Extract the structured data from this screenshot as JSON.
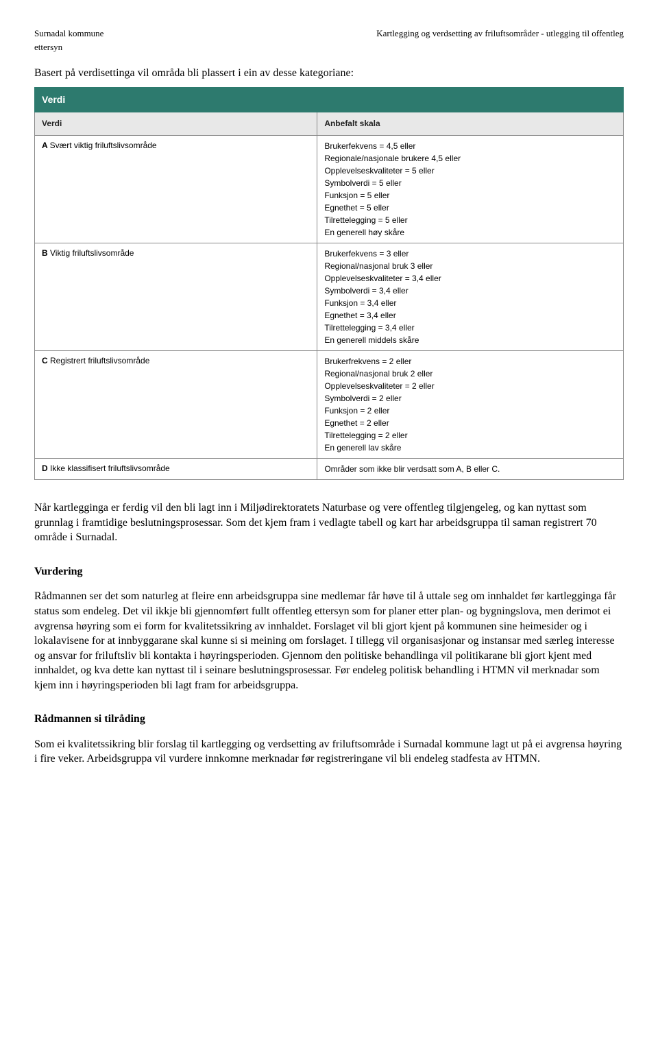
{
  "header": {
    "left_line1": "Surnadal kommune",
    "left_line2": "ettersyn",
    "right_line1": "Kartlegging og verdsetting av friluftsområder - utlegging til offentleg"
  },
  "intro": "Basert på verdisettinga vil områda bli plassert i ein av desse kategoriane:",
  "table": {
    "title": "Verdi",
    "col_a": "Verdi",
    "col_b": "Anbefalt skala",
    "rows": [
      {
        "cat": "A",
        "label": "Svært viktig friluftslivsområde",
        "criteria": [
          "Brukerfekvens = 4,5 eller",
          "Regionale/nasjonale brukere 4,5 eller",
          "Opplevelseskvaliteter = 5 eller",
          "Symbolverdi = 5 eller",
          "Funksjon = 5 eller",
          "Egnethet = 5 eller",
          "Tilrettelegging = 5 eller",
          "En generell høy skåre"
        ]
      },
      {
        "cat": "B",
        "label": "Viktig friluftslivsområde",
        "criteria": [
          "Brukerfekvens = 3 eller",
          "Regional/nasjonal bruk 3 eller",
          "Opplevelseskvaliteter = 3,4 eller",
          "Symbolverdi = 3,4 eller",
          "Funksjon = 3,4 eller",
          "Egnethet = 3,4 eller",
          "Tilrettelegging = 3,4 eller",
          "En generell middels skåre"
        ]
      },
      {
        "cat": "C",
        "label": "Registrert friluftslivsområde",
        "criteria": [
          "Brukerfrekvens = 2 eller",
          "Regional/nasjonal bruk 2 eller",
          "Opplevelseskvaliteter = 2 eller",
          "Symbolverdi = 2 eller",
          "Funksjon = 2 eller",
          "Egnethet = 2 eller",
          "Tilrettelegging = 2 eller",
          "En generell lav skåre"
        ]
      },
      {
        "cat": "D",
        "label": "Ikke klassifisert friluftslivsområde",
        "criteria": [
          "Områder som ikke blir verdsatt som A, B eller C."
        ]
      }
    ]
  },
  "para_after_table": "Når kartlegginga er ferdig vil den bli lagt inn i Miljødirektoratets Naturbase og vere offentleg tilgjengeleg, og kan nyttast som grunnlag i framtidige beslutningsprosessar. Som det kjem fram i vedlagte tabell og kart har arbeidsgruppa til saman registrert 70 område i Surnadal.",
  "vurdering": {
    "heading": "Vurdering",
    "body": "Rådmannen ser det som naturleg at fleire enn arbeidsgruppa sine medlemar får høve til å uttale seg om innhaldet før kartlegginga får status som endeleg. Det vil ikkje bli gjennomført fullt offentleg ettersyn som for planer etter plan- og bygningslova, men derimot ei avgrensa høyring som ei form for kvalitetssikring av innhaldet. Forslaget vil bli gjort kjent på kommunen sine heimesider og i lokalavisene for at innbyggarane skal kunne si si meining om forslaget. I tillegg vil organisasjonar og instansar med særleg interesse og ansvar for friluftsliv bli kontakta i høyringsperioden. Gjennom den politiske behandlinga vil politikarane bli gjort kjent med innhaldet, og kva dette kan nyttast til i seinare beslutningsprosessar. Før endeleg politisk behandling i HTMN vil merknadar som kjem inn i høyringsperioden bli lagt fram for arbeidsgruppa."
  },
  "tilrading": {
    "heading": "Rådmannen si tilråding",
    "body": "Som ei kvalitetssikring blir forslag til kartlegging og verdsetting av friluftsområde i Surnadal kommune lagt ut på ei avgrensa høyring i fire veker. Arbeidsgruppa vil vurdere innkomne merknadar før registreringane vil bli endeleg stadfesta av HTMN."
  }
}
